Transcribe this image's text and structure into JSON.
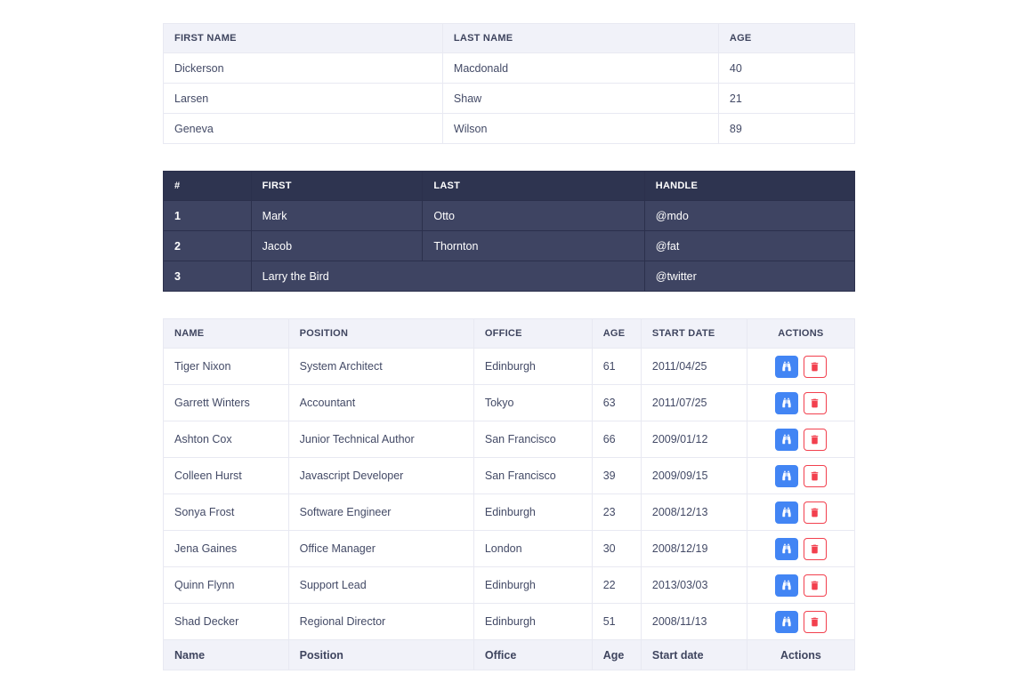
{
  "page": {
    "background": "#ffffff"
  },
  "colors": {
    "text": "#3f455f",
    "light_header_bg": "#f1f2f9",
    "light_border": "#e8e9f2",
    "dark_header_bg": "#2e3450",
    "dark_row_bg": "#3e4462",
    "dark_border": "#2b304c",
    "action_view_blue": "#4285f4",
    "action_delete_red": "#f2404e"
  },
  "tables": {
    "basic": {
      "title": "basic-table",
      "headers": [
        "FIRST NAME",
        "LAST NAME",
        "AGE"
      ],
      "rows": [
        [
          "Dickerson",
          "Macdonald",
          "40"
        ],
        [
          "Larsen",
          "Shaw",
          "21"
        ],
        [
          "Geneva",
          "Wilson",
          "89"
        ]
      ]
    },
    "inverse": {
      "title": "inverse-table",
      "headers": [
        "#",
        "FIRST",
        "LAST",
        "HANDLE"
      ],
      "rows": [
        [
          "1",
          "Mark",
          "Otto",
          "@mdo"
        ],
        [
          "2",
          "Jacob",
          "Thornton",
          "@fat"
        ],
        [
          "3",
          {
            "text": "Larry the Bird",
            "colspan": 2
          },
          "@twitter"
        ]
      ]
    },
    "employees": {
      "title": "employees-table",
      "headers": [
        "NAME",
        "POSITION",
        "OFFICE",
        "AGE",
        "START DATE",
        "ACTIONS"
      ],
      "rows": [
        [
          "Tiger Nixon",
          "System Architect",
          "Edinburgh",
          "61",
          "2011/04/25"
        ],
        [
          "Garrett Winters",
          "Accountant",
          "Tokyo",
          "63",
          "2011/07/25"
        ],
        [
          "Ashton Cox",
          "Junior Technical Author",
          "San Francisco",
          "66",
          "2009/01/12"
        ],
        [
          "Colleen Hurst",
          "Javascript Developer",
          "San Francisco",
          "39",
          "2009/09/15"
        ],
        [
          "Sonya Frost",
          "Software Engineer",
          "Edinburgh",
          "23",
          "2008/12/13"
        ],
        [
          "Jena Gaines",
          "Office Manager",
          "London",
          "30",
          "2008/12/19"
        ],
        [
          "Quinn Flynn",
          "Support Lead",
          "Edinburgh",
          "22",
          "2013/03/03"
        ],
        [
          "Shad Decker",
          "Regional Director",
          "Edinburgh",
          "51",
          "2008/11/13"
        ]
      ],
      "footer": [
        "Name",
        "Position",
        "Office",
        "Age",
        "Start date",
        "Actions"
      ],
      "row_actions": [
        {
          "name": "view-button",
          "icon": "binoculars-icon",
          "color": "#4285f4",
          "style": "solid"
        },
        {
          "name": "delete-button",
          "icon": "trash-icon",
          "color": "#f2404e",
          "style": "outline"
        }
      ]
    }
  }
}
